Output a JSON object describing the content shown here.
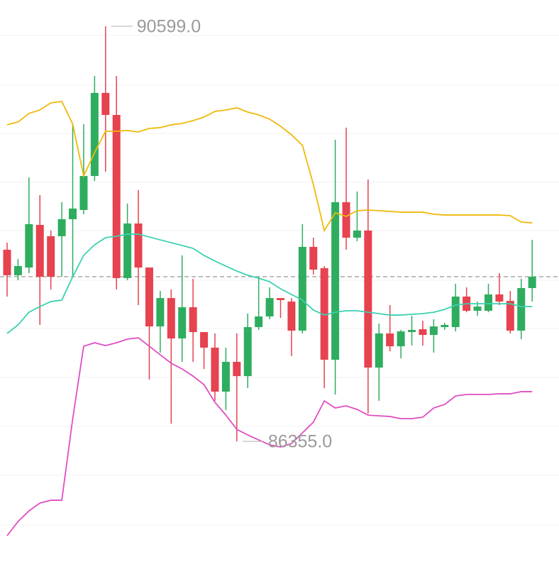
{
  "chart_data": {
    "type": "candlestick",
    "ylim": [
      85050,
      90867
    ],
    "up_color": "#2ead5f",
    "down_color": "#e6424f",
    "open": [
      88314,
      88053,
      88132,
      88568,
      88452,
      88452,
      88626,
      88720,
      89068,
      89917,
      89692,
      88024,
      88582,
      88132,
      87530,
      87820,
      87407,
      87726,
      87472,
      87313,
      86863,
      87168,
      87022,
      87523,
      87632,
      87820,
      87784,
      87487,
      88343,
      88125,
      87189,
      88800,
      88437,
      88510,
      87109,
      87458,
      87327,
      87472,
      87501,
      87443,
      87523,
      87523,
      87835,
      87690,
      87690,
      87857,
      87791,
      87487,
      87922
    ],
    "high": [
      88386,
      88219,
      89054,
      88872,
      88510,
      88800,
      89598,
      89598,
      90091,
      90599,
      90091,
      88785,
      88923,
      88132,
      87893,
      87908,
      88256,
      88016,
      87472,
      87458,
      87313,
      87458,
      87661,
      88038,
      87929,
      87820,
      87820,
      88575,
      88437,
      88147,
      89438,
      89562,
      88909,
      89032,
      87559,
      87748,
      87494,
      87639,
      87588,
      87603,
      87567,
      87966,
      87929,
      87784,
      87966,
      88074,
      87893,
      88016,
      88415
    ],
    "low": [
      87835,
      88002,
      88074,
      87545,
      87908,
      88038,
      88038,
      88677,
      89017,
      89112,
      87908,
      88002,
      87748,
      86986,
      87262,
      86536,
      87168,
      87168,
      87095,
      86769,
      86674,
      86355,
      86899,
      87494,
      87603,
      87617,
      87226,
      87458,
      88060,
      86899,
      86834,
      88314,
      88401,
      86638,
      86769,
      87276,
      87204,
      87334,
      87334,
      87262,
      87494,
      87479,
      87675,
      87639,
      87675,
      87748,
      87458,
      87400,
      87784
    ],
    "close": [
      88053,
      88147,
      88575,
      88038,
      88038,
      88626,
      88735,
      89068,
      89917,
      89692,
      88024,
      88582,
      88132,
      87530,
      87820,
      87407,
      87726,
      87472,
      87313,
      86863,
      87168,
      87022,
      87523,
      87632,
      87820,
      87799,
      87487,
      88343,
      88111,
      87189,
      88800,
      88437,
      88510,
      87109,
      87458,
      87327,
      87479,
      87494,
      87443,
      87530,
      87545,
      87835,
      87690,
      87733,
      87857,
      87784,
      87487,
      87922,
      88038
    ],
    "lines": [
      {
        "color": "#f0b90b",
        "values": [
          89591,
          89620,
          89707,
          89743,
          89815,
          89830,
          89598,
          89068,
          89308,
          89525,
          89525,
          89533,
          89518,
          89554,
          89562,
          89591,
          89605,
          89634,
          89670,
          89728,
          89743,
          89765,
          89721,
          89692,
          89649,
          89576,
          89489,
          89380,
          88981,
          88510,
          88691,
          88655,
          88713,
          88720,
          88713,
          88706,
          88698,
          88698,
          88698,
          88677,
          88669,
          88669,
          88669,
          88669,
          88669,
          88669,
          88662,
          88597,
          88589
        ]
      },
      {
        "color": "#3bd1b0",
        "values": [
          87458,
          87545,
          87675,
          87733,
          87784,
          87799,
          88038,
          88256,
          88365,
          88437,
          88452,
          88473,
          88473,
          88444,
          88415,
          88386,
          88357,
          88328,
          88256,
          88198,
          88147,
          88096,
          88053,
          88024,
          87987,
          87915,
          87857,
          87799,
          87697,
          87646,
          87675,
          87690,
          87690,
          87675,
          87661,
          87646,
          87646,
          87654,
          87661,
          87675,
          87704,
          87748,
          87762,
          87762,
          87762,
          87762,
          87762,
          87733,
          87733
        ]
      },
      {
        "color": "#e04ec2",
        "values": [
          85390,
          85535,
          85644,
          85724,
          85753,
          85753,
          86587,
          87327,
          87363,
          87334,
          87363,
          87400,
          87414,
          87327,
          87240,
          87153,
          87095,
          87022,
          86935,
          86754,
          86623,
          86478,
          86420,
          86370,
          86319,
          86297,
          86333,
          86442,
          86551,
          86769,
          86696,
          86718,
          86681,
          86623,
          86616,
          86609,
          86587,
          86587,
          86602,
          86696,
          86732,
          86819,
          86834,
          86834,
          86834,
          86841,
          86841,
          86863,
          86863
        ]
      }
    ],
    "price_line": 88038,
    "annotations": [
      {
        "value": 90599,
        "label": "90599.0"
      },
      {
        "value": 86355,
        "label": "86355.0"
      }
    ]
  }
}
